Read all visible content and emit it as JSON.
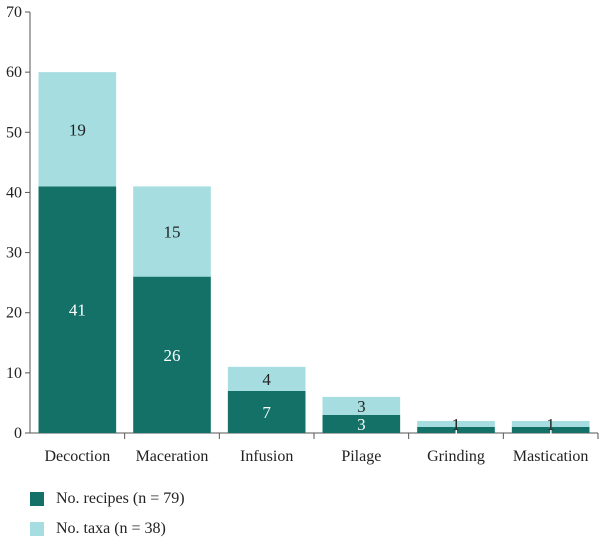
{
  "chart_data": {
    "type": "bar",
    "stacked": true,
    "categories": [
      "Decoction",
      "Maceration",
      "Infusion",
      "Pilage",
      "Grinding",
      "Mastication"
    ],
    "series": [
      {
        "name": "No. recipes (n = 79)",
        "values": [
          41,
          26,
          7,
          3,
          1,
          1
        ],
        "color": "#137168",
        "label_color": "#ffffff"
      },
      {
        "name": "No. taxa (n = 38)",
        "values": [
          19,
          15,
          4,
          3,
          1,
          1
        ],
        "color": "#a5dde0",
        "label_color": "#222222"
      }
    ],
    "yticks": [
      0,
      10,
      20,
      30,
      40,
      50,
      60,
      70
    ],
    "ylim": [
      0,
      70
    ],
    "grid": false,
    "legend": "bottom-left"
  }
}
